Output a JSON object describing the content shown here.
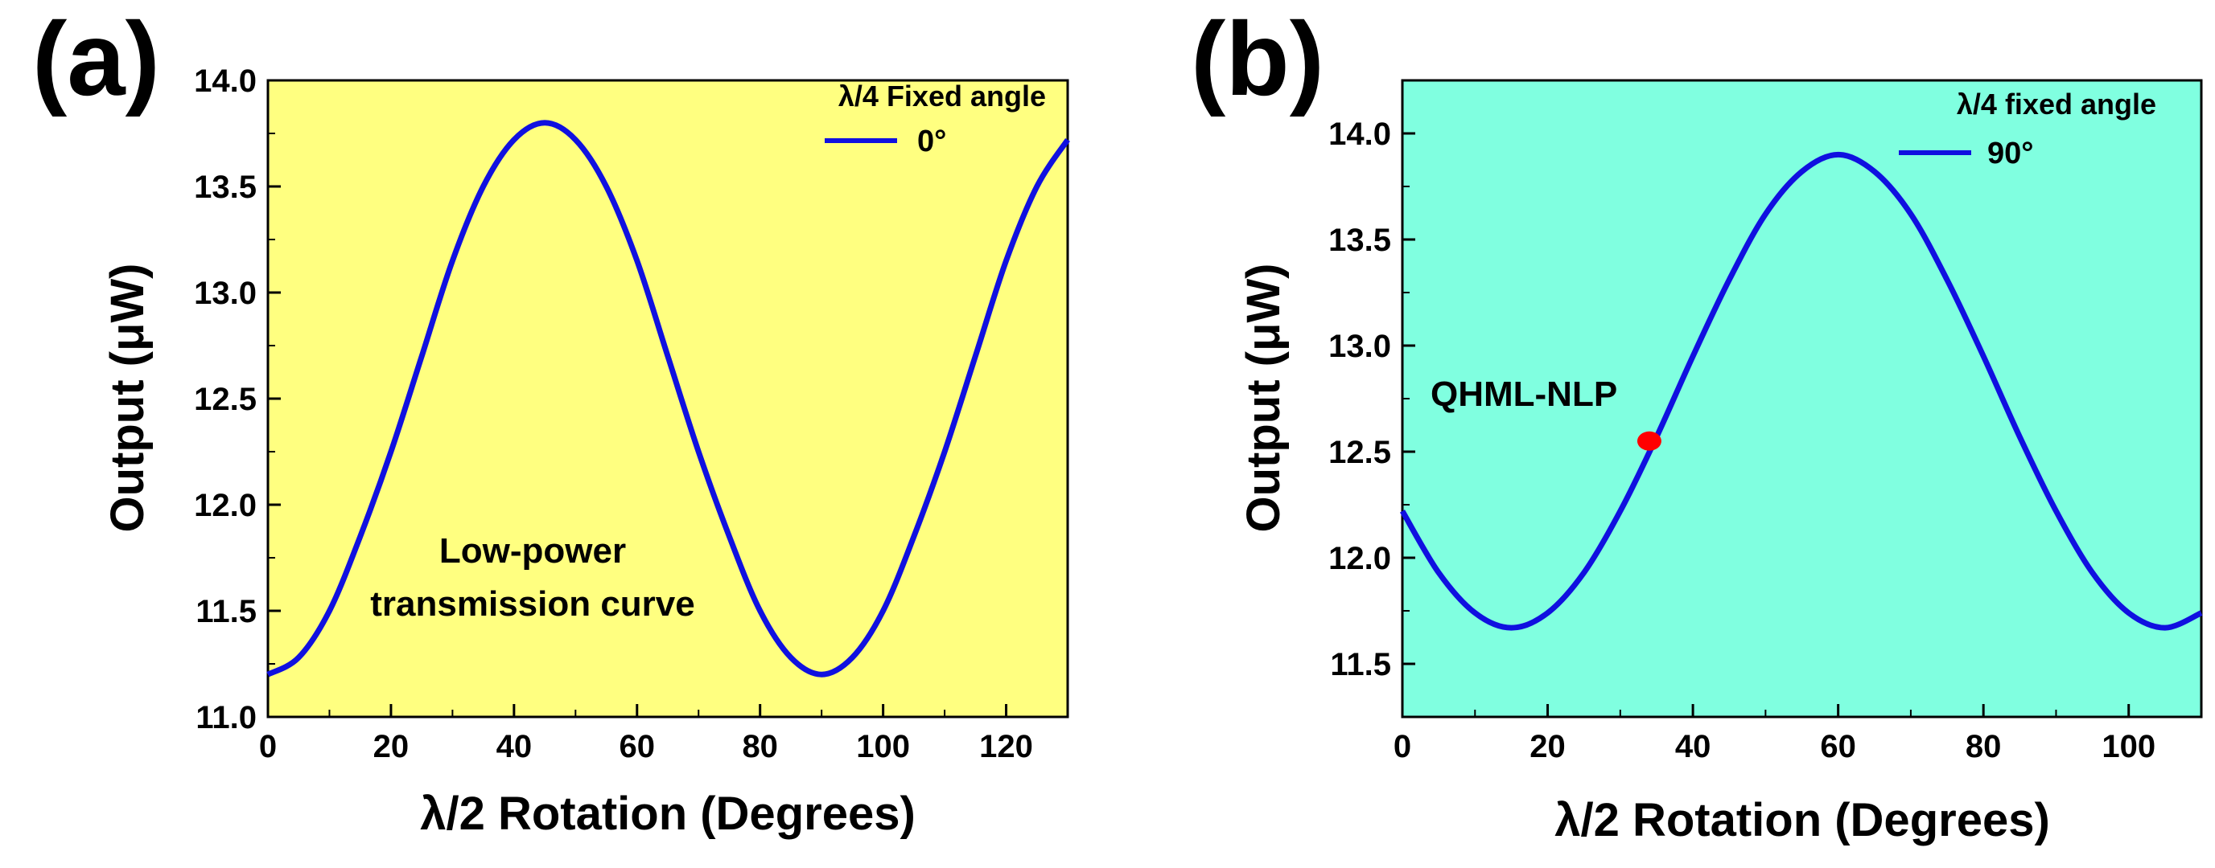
{
  "chart_data": [
    {
      "panel_label": "(a)",
      "type": "line",
      "background": "#FFFF80",
      "line_color": "#1010E0",
      "xlabel": "λ/2 Rotation (Degrees)",
      "ylabel": "Output (μW)",
      "xlim": [
        0,
        130
      ],
      "ylim": [
        11.0,
        14.0
      ],
      "xticks": [
        0,
        20,
        40,
        60,
        80,
        100,
        120
      ],
      "yticks": [
        11.0,
        11.5,
        12.0,
        12.5,
        13.0,
        13.5,
        14.0
      ],
      "ytick_labels": [
        "11.0",
        "11.5",
        "12.0",
        "12.5",
        "13.0",
        "13.5",
        "14.0"
      ],
      "legend": {
        "title": "λ/4 Fixed angle",
        "entries": [
          "0°"
        ],
        "position": "top-right"
      },
      "annotations": [
        "Low-power",
        "transmission curve"
      ],
      "series": [
        {
          "name": "0°",
          "x": [
            0,
            5,
            10,
            15,
            20,
            25,
            30,
            35,
            40,
            45,
            50,
            55,
            60,
            65,
            70,
            75,
            80,
            85,
            90,
            95,
            100,
            105,
            110,
            115,
            120,
            125,
            130
          ],
          "values": [
            11.2,
            11.28,
            11.5,
            11.85,
            12.25,
            12.7,
            13.15,
            13.5,
            13.72,
            13.8,
            13.72,
            13.5,
            13.15,
            12.7,
            12.25,
            11.85,
            11.5,
            11.28,
            11.2,
            11.28,
            11.5,
            11.85,
            12.25,
            12.7,
            13.15,
            13.5,
            13.72
          ]
        }
      ]
    },
    {
      "panel_label": "(b)",
      "type": "line",
      "background": "#80FFE0",
      "line_color": "#1010E0",
      "marker_color": "#FF0000",
      "xlabel": "λ/2 Rotation (Degrees)",
      "ylabel": "Output (μW)",
      "xlim": [
        0,
        110
      ],
      "ylim": [
        11.25,
        14.25
      ],
      "xticks": [
        0,
        20,
        40,
        60,
        80,
        100
      ],
      "yticks": [
        11.5,
        12.0,
        12.5,
        13.0,
        13.5,
        14.0
      ],
      "ytick_labels": [
        "11.5",
        "12.0",
        "12.5",
        "13.0",
        "13.5",
        "14.0"
      ],
      "legend": {
        "title": "λ/4 fixed angle",
        "entries": [
          "90°"
        ],
        "position": "top-right"
      },
      "annotations": [
        "QHML-NLP"
      ],
      "marker_point": {
        "label": "QHML-NLP",
        "x": 34,
        "y": 12.55
      },
      "series": [
        {
          "name": "90°",
          "x": [
            0,
            5,
            10,
            15,
            20,
            25,
            30,
            35,
            40,
            45,
            50,
            55,
            60,
            65,
            70,
            75,
            80,
            85,
            90,
            95,
            100,
            105,
            110
          ],
          "values": [
            12.22,
            11.93,
            11.74,
            11.67,
            11.74,
            11.93,
            12.22,
            12.57,
            12.95,
            13.31,
            13.62,
            13.82,
            13.9,
            13.82,
            13.62,
            13.31,
            12.95,
            12.57,
            12.22,
            11.93,
            11.74,
            11.67,
            11.74
          ]
        }
      ]
    }
  ]
}
